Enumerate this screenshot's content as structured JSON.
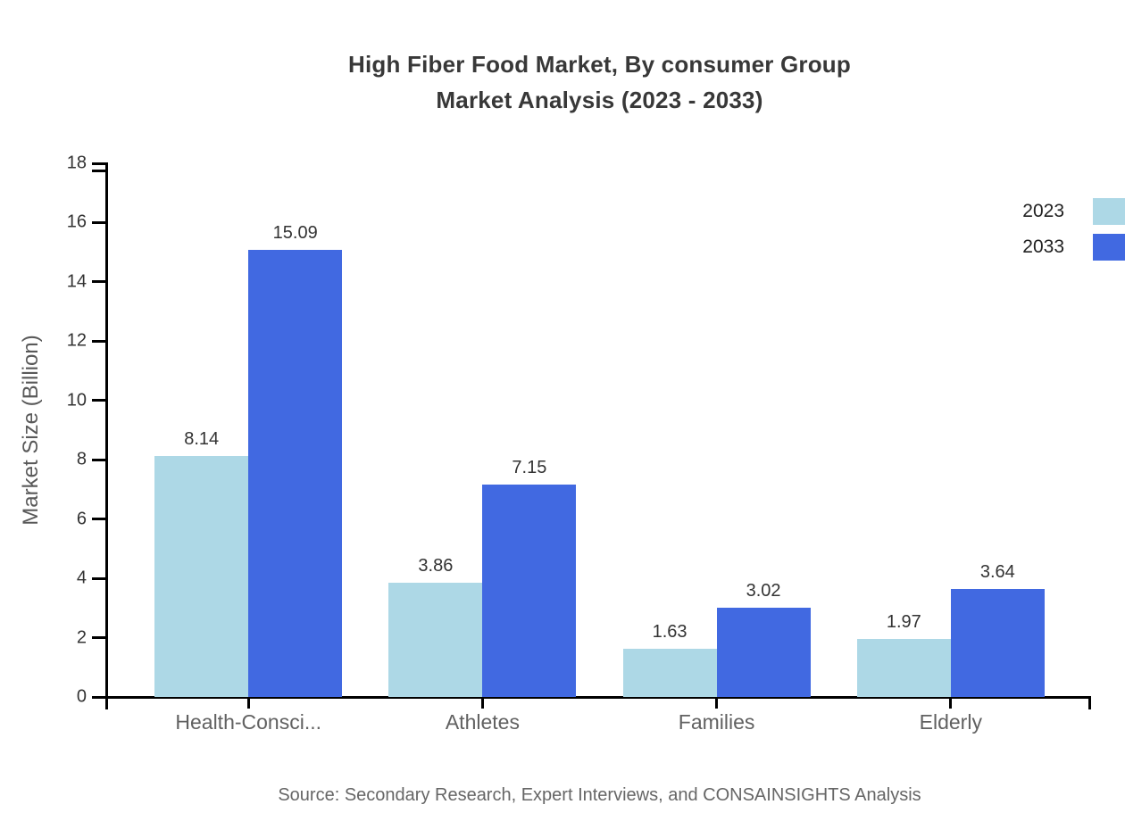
{
  "title": {
    "line1": "High Fiber Food Market, By consumer Group",
    "line2": "Market Analysis (2023 - 2033)"
  },
  "source": "Source: Secondary Research, Expert Interviews, and CONSAINSIGHTS Analysis",
  "chart_data": {
    "type": "bar",
    "title": "High Fiber Food Market, By consumer Group Market Analysis (2023 - 2033)",
    "categories": [
      "Health-Consci...",
      "Athletes",
      "Families",
      "Elderly"
    ],
    "series": [
      {
        "name": "2023",
        "color": "#ADD8E6",
        "values": [
          8.14,
          3.86,
          1.63,
          1.97
        ]
      },
      {
        "name": "2033",
        "color": "#4169E1",
        "values": [
          15.09,
          7.15,
          3.02,
          3.64
        ]
      }
    ],
    "xlabel": "",
    "ylabel": "Market Size (Billion)",
    "ylim": [
      0,
      18
    ],
    "ytick_step": 2,
    "yticks": [
      0,
      2,
      4,
      6,
      8,
      10,
      12,
      14,
      16,
      18
    ],
    "grid": false,
    "legend_position": "top-right",
    "value_labels": true,
    "value_label_decimals": 2
  },
  "colors": {
    "series_2023": "#ADD8E6",
    "series_2033": "#4169E1",
    "axis": "#000000",
    "tick_label": "#333333",
    "category_label": "#616161",
    "title": "#383838",
    "value_label": "#333333",
    "source": "#666666"
  }
}
